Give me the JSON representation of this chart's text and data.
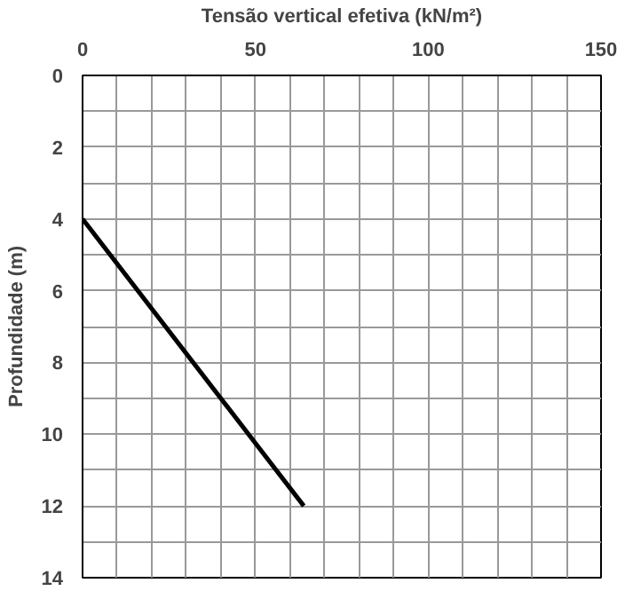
{
  "chart_data": {
    "type": "line",
    "xlabel": "Tensão vertical efetiva (kN/m²)",
    "ylabel": "Profundidade (m)",
    "x": [
      0,
      64
    ],
    "series": [
      {
        "color": "#000000",
        "values": [
          4,
          12
        ]
      }
    ],
    "xlim": [
      0,
      150
    ],
    "ylim": [
      14,
      0
    ],
    "xticks": [
      0,
      {
        "value": 10,
        "label": null
      },
      {
        "value": 20,
        "label": null
      },
      {
        "value": 30,
        "label": null
      },
      {
        "value": 40,
        "label": null
      },
      50,
      {
        "value": 60,
        "label": null
      },
      {
        "value": 70,
        "label": null
      },
      {
        "value": 80,
        "label": null
      },
      {
        "value": 90,
        "label": null
      },
      100,
      {
        "value": 110,
        "label": null
      },
      {
        "value": 120,
        "label": null
      },
      {
        "value": 130,
        "label": null
      },
      {
        "value": 140,
        "label": null
      },
      150
    ],
    "yticks": [
      0,
      {
        "value": 1,
        "label": null
      },
      2,
      {
        "value": 3,
        "label": null
      },
      4,
      {
        "value": 5,
        "label": null
      },
      6,
      {
        "value": 7,
        "label": null
      },
      8,
      {
        "value": 9,
        "label": null
      },
      10,
      {
        "value": 11,
        "label": null
      },
      12,
      {
        "value": 13,
        "label": null
      },
      14
    ],
    "grid": true,
    "line_style": "solid",
    "marker": "none"
  }
}
